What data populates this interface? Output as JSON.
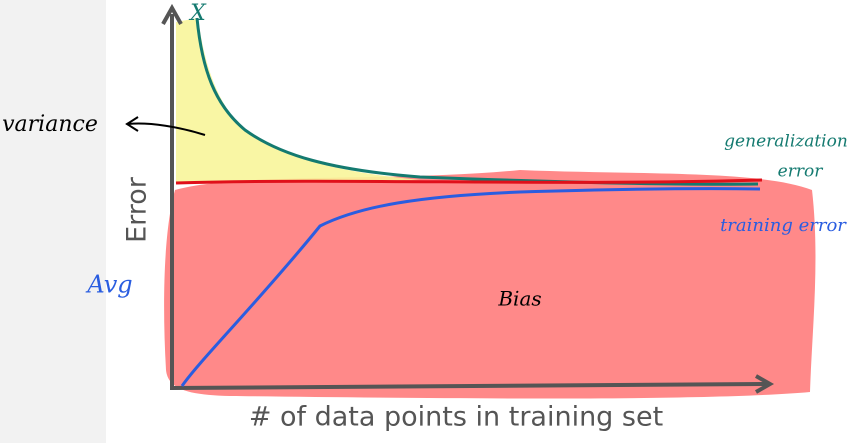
{
  "diagram": {
    "y_axis_label": "Error",
    "x_axis_label": "# of data points in training set",
    "top_mark": "X",
    "variance_label": "variance",
    "avg_label": "Avg",
    "bias_label": "Bias",
    "generalization_label": [
      "generalization",
      "error"
    ],
    "training_label": "training error"
  }
}
